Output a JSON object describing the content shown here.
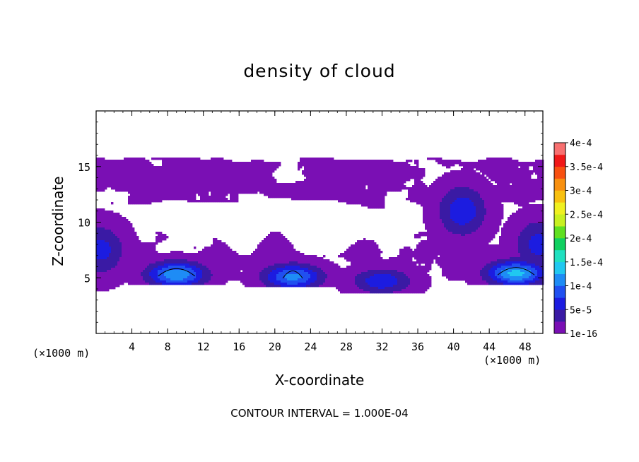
{
  "chart_data": {
    "type": "heatmap",
    "title": "density of cloud",
    "xlabel": "X-coordinate",
    "ylabel": "Z-coordinate",
    "x_unit_left": "(×1000 m)",
    "x_unit_right": "(×1000 m)",
    "annotation": "CONTOUR INTERVAL = 1.000E-04",
    "xlim": [
      0,
      50
    ],
    "ylim": [
      0,
      20
    ],
    "x_ticks": [
      4,
      8,
      12,
      16,
      20,
      24,
      28,
      32,
      36,
      40,
      44,
      48
    ],
    "y_ticks": [
      5,
      10,
      15
    ],
    "colorbar": {
      "labels": [
        "1e-16",
        "5e-5",
        "1e-4",
        "1.5e-4",
        "2e-4",
        "2.5e-4",
        "3e-4",
        "3.5e-4",
        "4e-4"
      ],
      "levels": [
        1e-16,
        5e-05,
        0.0001,
        0.00015,
        0.0002,
        0.00025,
        0.0003,
        0.00035,
        0.0004
      ],
      "colors": [
        "#7a0fb4",
        "#3a1aa4",
        "#1c1ce0",
        "#2050f0",
        "#1e8cf5",
        "#20c8f0",
        "#20e0c0",
        "#10d060",
        "#60e020",
        "#c8f020",
        "#f0f020",
        "#f8c010",
        "#f89010",
        "#f85010",
        "#f01818",
        "#f87070"
      ]
    },
    "cloud_layers": [
      {
        "name": "upper",
        "x_range": [
          0,
          50
        ],
        "z_range": [
          10.8,
          16.1
        ],
        "peak": 1.2e-05
      },
      {
        "name": "lower",
        "x_range": [
          0,
          50
        ],
        "z_range": [
          4.0,
          10.0
        ],
        "peak": 4e-05
      }
    ],
    "cores": [
      {
        "x": 9,
        "z": 5.3,
        "peak": 0.000125
      },
      {
        "x": 22,
        "z": 5.1,
        "peak": 0.00011
      },
      {
        "x": 32,
        "z": 4.7,
        "peak": 7e-05
      },
      {
        "x": 47,
        "z": 5.4,
        "peak": 0.000135
      }
    ],
    "secondary_maxima": [
      {
        "x": 41,
        "z": 11.0,
        "peak": 7e-05
      },
      {
        "x": 0.5,
        "z": 7.5,
        "peak": 6e-05
      },
      {
        "x": 49.5,
        "z": 8.0,
        "peak": 6e-05
      }
    ],
    "grid": false
  }
}
